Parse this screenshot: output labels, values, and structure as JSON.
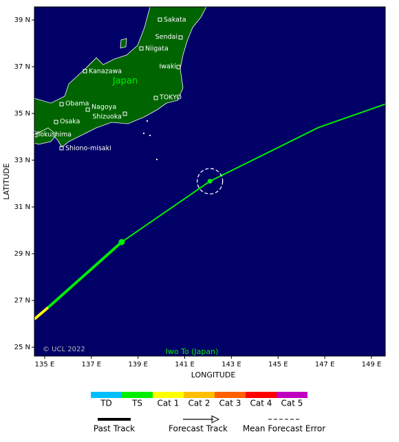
{
  "chart_data": {
    "type": "track",
    "xlabel": "LONGITUDE",
    "ylabel": "LATITUDE",
    "xlim": [
      134.56,
      149.59
    ],
    "ylim": [
      24.62,
      39.56
    ],
    "xticks": [
      {
        "value": 135,
        "label": "135 E"
      },
      {
        "value": 137,
        "label": "137 E"
      },
      {
        "value": 139,
        "label": "139 E"
      },
      {
        "value": 141,
        "label": "141 E"
      },
      {
        "value": 143,
        "label": "143 E"
      },
      {
        "value": 145,
        "label": "145 E"
      },
      {
        "value": 147,
        "label": "147 E"
      },
      {
        "value": 149,
        "label": "149 E"
      }
    ],
    "yticks": [
      {
        "value": 25,
        "label": "25 N"
      },
      {
        "value": 27,
        "label": "27 N"
      },
      {
        "value": 29,
        "label": "29 N"
      },
      {
        "value": 31,
        "label": "31 N"
      },
      {
        "value": 33,
        "label": "33 N"
      },
      {
        "value": 35,
        "label": "35 N"
      },
      {
        "value": 37,
        "label": "37 N"
      },
      {
        "value": 39,
        "label": "39 N"
      }
    ],
    "tracks": [
      {
        "style": "past",
        "color": "#ffff00",
        "x": [
          134.56,
          135.15
        ],
        "y": [
          26.2,
          26.7
        ]
      },
      {
        "style": "past",
        "color": "#00ee00",
        "x": [
          135.15,
          138.3
        ],
        "y": [
          26.7,
          29.5
        ]
      },
      {
        "style": "forecast",
        "color": "#00ee00",
        "x": [
          138.3,
          142.08,
          146.73,
          149.59
        ],
        "y": [
          29.5,
          32.1,
          34.4,
          35.4
        ]
      }
    ],
    "positions": {
      "x": [
        138.3,
        142.08
      ],
      "y": [
        29.5,
        32.1
      ],
      "color": "#00ee00"
    },
    "error_circle": {
      "x": 142.08,
      "y": 32.1
    },
    "country": "Japan",
    "cities": [
      "Sakata",
      "Sendai",
      "Niigata",
      "Iwaki",
      "Kanazawa",
      "TOKYO",
      "Obama",
      "Nagoya",
      "Shizuoka",
      "Osaka",
      "Tokushima",
      "Shiono-misaki"
    ],
    "copyright": "© UCL 2022",
    "location_label": "Iwo To (Japan)",
    "intensity_legend": [
      {
        "label": "TD",
        "color": "#00bfff"
      },
      {
        "label": "TS",
        "color": "#00ee00"
      },
      {
        "label": "Cat 1",
        "color": "#ffff00"
      },
      {
        "label": "Cat 2",
        "color": "#ffbf00"
      },
      {
        "label": "Cat 3",
        "color": "#ff6000"
      },
      {
        "label": "Cat 4",
        "color": "#ff0000"
      },
      {
        "label": "Cat 5",
        "color": "#c000c0"
      }
    ],
    "track_legend": [
      "Past Track",
      "Forecast Track",
      "Mean Forecast Error"
    ]
  }
}
